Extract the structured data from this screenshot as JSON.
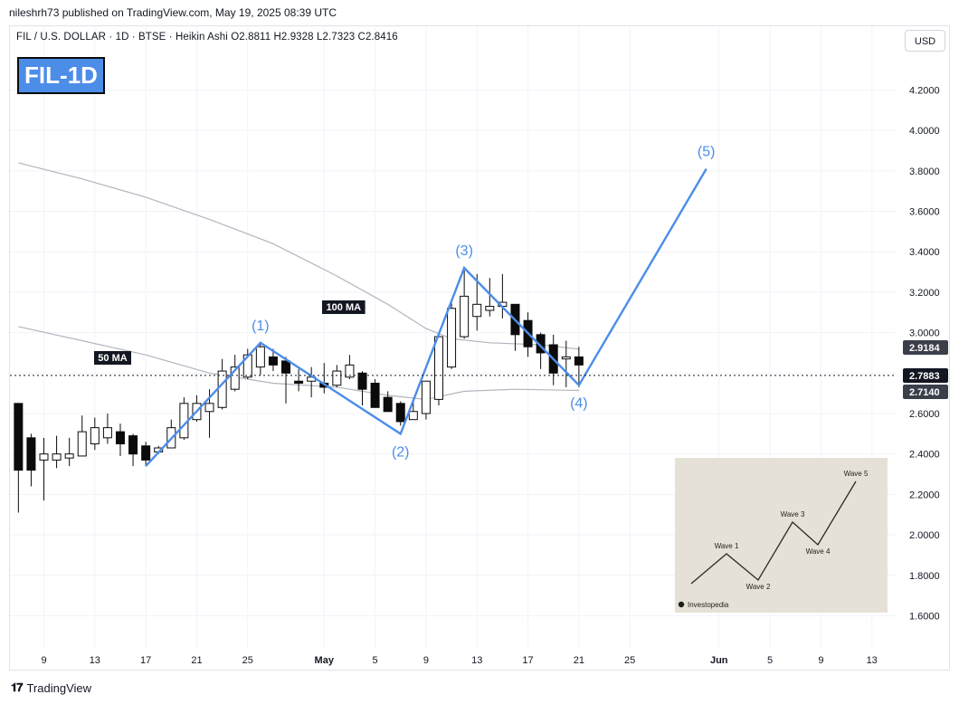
{
  "header": {
    "publisher_line": "nileshrh73 published on TradingView.com, May 19, 2025 08:39 UTC"
  },
  "legend": {
    "symbol": "FIL / U.S. DOLLAR · 1D · BTSE · Heikin Ashi",
    "ohlc": "O2.8811  H2.9328  L2.7323  C2.8416"
  },
  "badge": {
    "text": "FIL-1D",
    "color": "#4c8de8"
  },
  "currency_button": "USD",
  "footer": {
    "brand": "TradingView"
  },
  "colors": {
    "wave": "#4c8de8",
    "candle": "#0b0b0b",
    "ma": "#b2b5be",
    "inset_bg": "#e6e1d6"
  },
  "chart_data": {
    "type": "candlestick",
    "chart_style": "Heikin Ashi",
    "price_scale": "linear",
    "ylim": [
      1.5,
      4.4
    ],
    "y_ticks": [
      1.6,
      1.8,
      2.0,
      2.2,
      2.4,
      2.6,
      2.8,
      3.0,
      3.2,
      3.4,
      3.6,
      3.8,
      4.0,
      4.2
    ],
    "x_ticks": [
      {
        "day": 9,
        "label": "9"
      },
      {
        "day": 13,
        "label": "13"
      },
      {
        "day": 17,
        "label": "17"
      },
      {
        "day": 21,
        "label": "21"
      },
      {
        "day": 25,
        "label": "25"
      },
      {
        "day": 31,
        "label": "May"
      },
      {
        "day": 35,
        "label": "5"
      },
      {
        "day": 39,
        "label": "9"
      },
      {
        "day": 43,
        "label": "13"
      },
      {
        "day": 47,
        "label": "17"
      },
      {
        "day": 51,
        "label": "21"
      },
      {
        "day": 55,
        "label": "25"
      },
      {
        "day": 62,
        "label": "Jun"
      },
      {
        "day": 66,
        "label": "5"
      },
      {
        "day": 70,
        "label": "9"
      },
      {
        "day": 74,
        "label": "13"
      }
    ],
    "x_note": "day index = days since the April 1 origin; day 31 = May 1, day 62 = Jun 1",
    "candles": [
      {
        "day": 7,
        "o": 2.65,
        "h": 2.65,
        "l": 2.11,
        "c": 2.32
      },
      {
        "day": 8,
        "o": 2.48,
        "h": 2.5,
        "l": 2.24,
        "c": 2.32
      },
      {
        "day": 9,
        "o": 2.37,
        "h": 2.48,
        "l": 2.17,
        "c": 2.4
      },
      {
        "day": 10,
        "o": 2.37,
        "h": 2.49,
        "l": 2.33,
        "c": 2.4
      },
      {
        "day": 11,
        "o": 2.38,
        "h": 2.48,
        "l": 2.34,
        "c": 2.4
      },
      {
        "day": 12,
        "o": 2.39,
        "h": 2.59,
        "l": 2.39,
        "c": 2.51
      },
      {
        "day": 13,
        "o": 2.45,
        "h": 2.58,
        "l": 2.42,
        "c": 2.53
      },
      {
        "day": 14,
        "o": 2.48,
        "h": 2.6,
        "l": 2.45,
        "c": 2.53
      },
      {
        "day": 15,
        "o": 2.51,
        "h": 2.55,
        "l": 2.39,
        "c": 2.45
      },
      {
        "day": 16,
        "o": 2.49,
        "h": 2.5,
        "l": 2.34,
        "c": 2.4
      },
      {
        "day": 17,
        "o": 2.44,
        "h": 2.46,
        "l": 2.34,
        "c": 2.37
      },
      {
        "day": 18,
        "o": 2.41,
        "h": 2.44,
        "l": 2.4,
        "c": 2.43
      },
      {
        "day": 19,
        "o": 2.43,
        "h": 2.57,
        "l": 2.43,
        "c": 2.53
      },
      {
        "day": 20,
        "o": 2.48,
        "h": 2.68,
        "l": 2.47,
        "c": 2.65
      },
      {
        "day": 21,
        "o": 2.57,
        "h": 2.69,
        "l": 2.56,
        "c": 2.65
      },
      {
        "day": 22,
        "o": 2.61,
        "h": 2.72,
        "l": 2.48,
        "c": 2.65
      },
      {
        "day": 23,
        "o": 2.63,
        "h": 2.87,
        "l": 2.62,
        "c": 2.81
      },
      {
        "day": 24,
        "o": 2.72,
        "h": 2.89,
        "l": 2.71,
        "c": 2.83
      },
      {
        "day": 25,
        "o": 2.78,
        "h": 2.92,
        "l": 2.77,
        "c": 2.89
      },
      {
        "day": 26,
        "o": 2.83,
        "h": 2.95,
        "l": 2.79,
        "c": 2.93
      },
      {
        "day": 27,
        "o": 2.88,
        "h": 2.92,
        "l": 2.81,
        "c": 2.84
      },
      {
        "day": 28,
        "o": 2.86,
        "h": 2.88,
        "l": 2.65,
        "c": 2.8
      },
      {
        "day": 29,
        "o": 2.76,
        "h": 2.82,
        "l": 2.71,
        "c": 2.75
      },
      {
        "day": 30,
        "o": 2.76,
        "h": 2.83,
        "l": 2.68,
        "c": 2.78
      },
      {
        "day": 31,
        "o": 2.75,
        "h": 2.85,
        "l": 2.7,
        "c": 2.73
      },
      {
        "day": 32,
        "o": 2.74,
        "h": 2.84,
        "l": 2.73,
        "c": 2.81
      },
      {
        "day": 33,
        "o": 2.78,
        "h": 2.89,
        "l": 2.77,
        "c": 2.84
      },
      {
        "day": 34,
        "o": 2.8,
        "h": 2.81,
        "l": 2.64,
        "c": 2.72
      },
      {
        "day": 35,
        "o": 2.75,
        "h": 2.77,
        "l": 2.63,
        "c": 2.63
      },
      {
        "day": 36,
        "o": 2.68,
        "h": 2.71,
        "l": 2.61,
        "c": 2.61
      },
      {
        "day": 37,
        "o": 2.65,
        "h": 2.66,
        "l": 2.54,
        "c": 2.56
      },
      {
        "day": 38,
        "o": 2.57,
        "h": 2.67,
        "l": 2.57,
        "c": 2.61
      },
      {
        "day": 39,
        "o": 2.6,
        "h": 2.76,
        "l": 2.57,
        "c": 2.76
      },
      {
        "day": 40,
        "o": 2.67,
        "h": 3.0,
        "l": 2.64,
        "c": 2.98
      },
      {
        "day": 41,
        "o": 2.83,
        "h": 3.15,
        "l": 2.82,
        "c": 3.12
      },
      {
        "day": 42,
        "o": 2.98,
        "h": 3.32,
        "l": 2.97,
        "c": 3.18
      },
      {
        "day": 43,
        "o": 3.08,
        "h": 3.29,
        "l": 3.01,
        "c": 3.14
      },
      {
        "day": 44,
        "o": 3.11,
        "h": 3.27,
        "l": 3.08,
        "c": 3.13
      },
      {
        "day": 45,
        "o": 3.13,
        "h": 3.29,
        "l": 3.07,
        "c": 3.15
      },
      {
        "day": 46,
        "o": 3.14,
        "h": 3.14,
        "l": 2.91,
        "c": 2.99
      },
      {
        "day": 47,
        "o": 3.06,
        "h": 3.1,
        "l": 2.88,
        "c": 2.93
      },
      {
        "day": 48,
        "o": 2.99,
        "h": 3.0,
        "l": 2.82,
        "c": 2.9
      },
      {
        "day": 49,
        "o": 2.94,
        "h": 2.99,
        "l": 2.74,
        "c": 2.8
      },
      {
        "day": 50,
        "o": 2.87,
        "h": 2.96,
        "l": 2.73,
        "c": 2.88
      },
      {
        "day": 51,
        "o": 2.88,
        "h": 2.93,
        "l": 2.73,
        "c": 2.84
      }
    ],
    "moving_averages": [
      {
        "label": "100 MA",
        "points": [
          [
            7,
            3.84
          ],
          [
            12,
            3.76
          ],
          [
            17,
            3.67
          ],
          [
            22,
            3.56
          ],
          [
            27,
            3.44
          ],
          [
            32,
            3.28
          ],
          [
            36,
            3.14
          ],
          [
            39,
            3.02
          ],
          [
            41,
            2.97
          ],
          [
            44,
            2.95
          ],
          [
            48,
            2.94
          ],
          [
            51,
            2.918
          ]
        ],
        "value_tag": "2.9184"
      },
      {
        "label": "50 MA",
        "points": [
          [
            7,
            3.03
          ],
          [
            12,
            2.96
          ],
          [
            17,
            2.89
          ],
          [
            22,
            2.8
          ],
          [
            27,
            2.75
          ],
          [
            32,
            2.73
          ],
          [
            36,
            2.69
          ],
          [
            39,
            2.67
          ],
          [
            42,
            2.71
          ],
          [
            46,
            2.72
          ],
          [
            51,
            2.714
          ]
        ],
        "value_tag": "2.7140"
      }
    ],
    "last_price": {
      "value": 2.7883,
      "label": "2.7883"
    },
    "elliott_wave": {
      "points": [
        {
          "label": "",
          "day": 17,
          "price": 2.34
        },
        {
          "label": "(1)",
          "day": 26,
          "price": 2.95
        },
        {
          "label": "(2)",
          "day": 37,
          "price": 2.5
        },
        {
          "label": "(3)",
          "day": 42,
          "price": 3.32
        },
        {
          "label": "(4)",
          "day": 51,
          "price": 2.74
        },
        {
          "label": "(5)",
          "day": 61,
          "price": 3.81
        }
      ]
    },
    "inset": {
      "source": "Investopedia",
      "labels": [
        "Wave 1",
        "Wave 2",
        "Wave 3",
        "Wave 4",
        "Wave 5"
      ]
    }
  }
}
